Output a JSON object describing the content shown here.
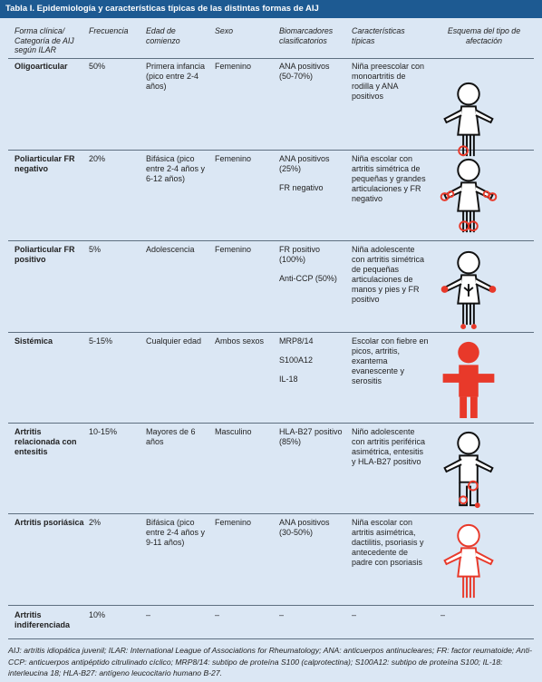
{
  "title": "Tabla I.  Epidemiología y características típicas de las distintas formas de AIJ",
  "headers": {
    "form": "Forma clínica/ Categoría de AIJ según ILAR",
    "freq": "Frecuencia",
    "onset": "Edad de comienzo",
    "sex": "Sexo",
    "bio": "Biomarcadores clasificatorios",
    "feat": "Características típicas",
    "scheme": "Esquema del tipo de afectación"
  },
  "rows": [
    {
      "form": "Oligoarticular",
      "freq": "50%",
      "onset": "Primera infancia (pico entre 2-4 años)",
      "sex": "Femenino",
      "bio1": "ANA positivos (50-70%)",
      "bio2": "",
      "bio3": "",
      "feat": "Niña preescolar con monoartritis de rodilla y ANA positivos"
    },
    {
      "form": "Poliarticular FR negativo",
      "freq": "20%",
      "onset": "Bifásica (pico entre 2-4 años y 6-12 años)",
      "sex": "Femenino",
      "bio1": "ANA positivos (25%)",
      "bio2": "FR negativo",
      "bio3": "",
      "feat": "Niña escolar con artritis simétrica de pequeñas y grandes articulaciones y FR negativo"
    },
    {
      "form": "Poliarticular FR positivo",
      "freq": "5%",
      "onset": "Adolescencia",
      "sex": "Femenino",
      "bio1": "FR positivo (100%)",
      "bio2": "Anti-CCP (50%)",
      "bio3": "",
      "feat": "Niña adolescente con artritis simétrica de pequeñas articulaciones de manos y pies y FR positivo"
    },
    {
      "form": "Sistémica",
      "freq": "5-15%",
      "onset": "Cualquier edad",
      "sex": "Ambos sexos",
      "bio1": "MRP8/14",
      "bio2": "S100A12",
      "bio3": "IL-18",
      "feat": "Escolar con fiebre en picos, artritis, exantema evanescente y serositis"
    },
    {
      "form": "Artritis relacionada con entesitis",
      "freq": "10-15%",
      "onset": "Mayores de 6 años",
      "sex": "Masculino",
      "bio1": "HLA-B27 positivo (85%)",
      "bio2": "",
      "bio3": "",
      "feat": "Niño adolescente con artritis periférica asimétrica, entesitis y HLA-B27 positivo"
    },
    {
      "form": "Artritis psoriásica",
      "freq": "2%",
      "onset": "Bifásica (pico entre 2-4 años y 9-11 años)",
      "sex": "Femenino",
      "bio1": "ANA positivos (30-50%)",
      "bio2": "",
      "bio3": "",
      "feat": "Niña escolar con artritis asimétrica, dactilitis, psoriasis y antecedente de padre con psoriasis"
    },
    {
      "form": "Artritis indiferenciada",
      "freq": "10%",
      "onset": "–",
      "sex": "–",
      "bio1": "–",
      "bio2": "",
      "bio3": "",
      "feat": "–",
      "scheme": "–"
    }
  ],
  "footnote": "AIJ: artritis idiopática juvenil; ILAR: International League of Associations for Rheumatology; ANA: anticuerpos antinucleares; FR: factor reumatoide; Anti-CCP: anticuerpos antipéptido citrulinado cíclico; MRP8/14: subtipo de proteína S100 (calprotectina); S100A12: subtipo de proteína S100; IL-18: interleucina 18; HLA-B27: antígeno leucocitario humano B-27.",
  "colors": {
    "header_bg": "#1d5a92",
    "page_bg": "#dbe7f4",
    "joint_red": "#e8392a",
    "outline": "#111111"
  }
}
